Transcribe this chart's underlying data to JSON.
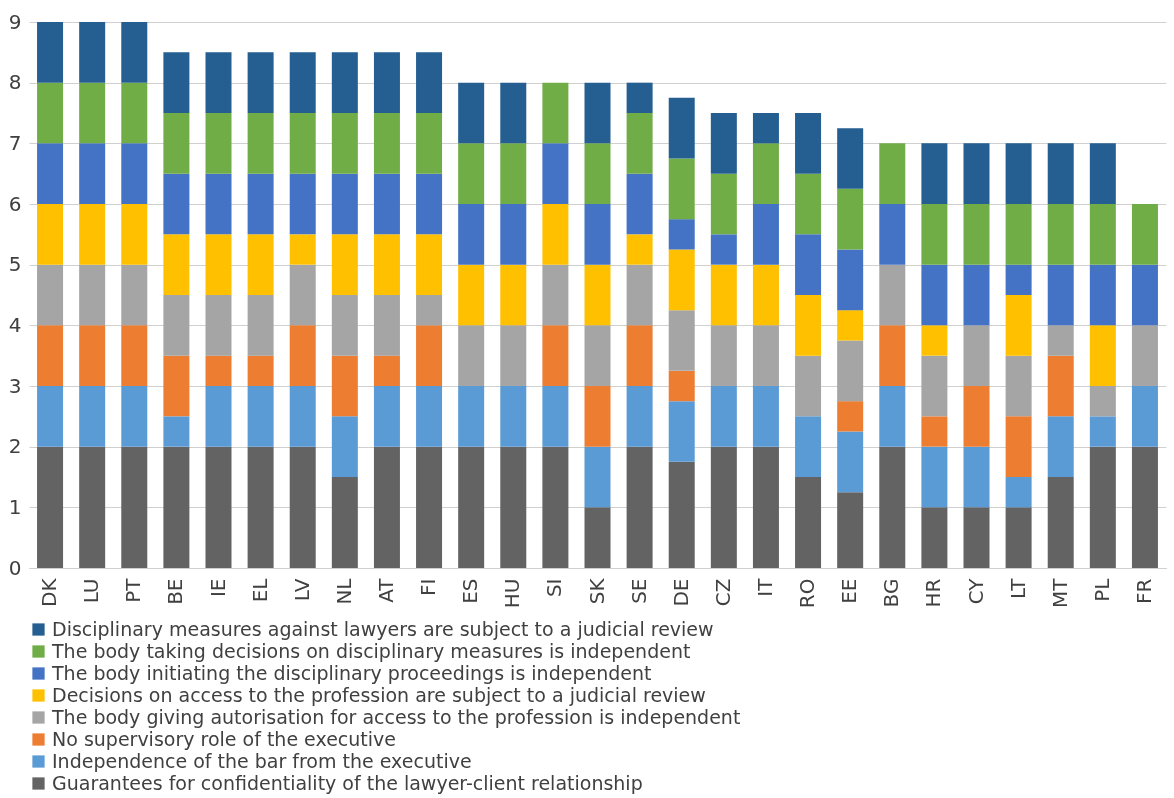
{
  "chart_data": {
    "type": "bar",
    "stacked": true,
    "categories": [
      "DK",
      "LU",
      "PT",
      "BE",
      "IE",
      "EL",
      "LV",
      "NL",
      "AT",
      "FI",
      "ES",
      "HU",
      "SI",
      "SK",
      "SE",
      "DE",
      "CZ",
      "IT",
      "RO",
      "EE",
      "BG",
      "HR",
      "CY",
      "LT",
      "MT",
      "PL",
      "FR"
    ],
    "series": [
      {
        "name": "Guarantees for confidentiality of the lawyer-client relationship",
        "color": "#636363",
        "values": [
          2,
          2,
          2,
          2,
          2,
          2,
          2,
          1.5,
          2,
          2,
          2,
          2,
          2,
          1,
          2,
          1.75,
          2,
          2,
          1.5,
          1.25,
          2,
          1,
          1,
          1,
          1.5,
          2,
          2
        ]
      },
      {
        "name": "Independence of the bar from the executive",
        "color": "#5b9bd5",
        "values": [
          1,
          1,
          1,
          0.5,
          1,
          1,
          1,
          1,
          1,
          1,
          1,
          1,
          1,
          1,
          1,
          1,
          1,
          1,
          1,
          1,
          1,
          1,
          1,
          0.5,
          1,
          0.5,
          1
        ]
      },
      {
        "name": "No supervisory role of the executive",
        "color": "#ed7d31",
        "values": [
          1,
          1,
          1,
          1,
          0.5,
          0.5,
          1,
          1,
          0.5,
          1,
          0,
          0,
          1,
          1,
          1,
          0.5,
          0,
          0,
          0,
          0.5,
          1,
          0.5,
          1,
          1,
          1,
          0,
          0
        ]
      },
      {
        "name": "The body giving autorisation for access to the profession is independent",
        "color": "#a5a5a5",
        "values": [
          1,
          1,
          1,
          1,
          1,
          1,
          1,
          1,
          1,
          0.5,
          1,
          1,
          1,
          1,
          1,
          1,
          1,
          1,
          1,
          1,
          1,
          1,
          1,
          1,
          0.5,
          0.5,
          1
        ]
      },
      {
        "name": "Decisions on access to the profession are subject to a judicial review",
        "color": "#ffc000",
        "values": [
          1,
          1,
          1,
          1,
          1,
          1,
          0.5,
          1,
          1,
          1,
          1,
          1,
          1,
          1,
          0.5,
          1,
          1,
          1,
          1,
          0.5,
          0,
          0.5,
          0,
          1,
          0,
          1,
          0
        ]
      },
      {
        "name": "The body initiating the disciplinary proceedings is independent",
        "color": "#4472c4",
        "values": [
          1,
          1,
          1,
          1,
          1,
          1,
          1,
          1,
          1,
          1,
          1,
          1,
          1,
          1,
          1,
          0.5,
          0.5,
          1,
          1,
          1,
          1,
          1,
          1,
          0.5,
          1,
          1,
          1
        ]
      },
      {
        "name": "The body taking decisions on disciplinary measures is independent",
        "color": "#70ad47",
        "values": [
          1,
          1,
          1,
          1,
          1,
          1,
          1,
          1,
          1,
          1,
          1,
          1,
          1,
          1,
          1,
          1,
          1,
          1,
          1,
          1,
          1,
          1,
          1,
          1,
          1,
          1,
          1
        ]
      },
      {
        "name": "Disciplinary measures against lawyers are subject to a judicial review",
        "color": "#255e91",
        "values": [
          1,
          1,
          1,
          1,
          1,
          1,
          1,
          1,
          1,
          1,
          1,
          1,
          0,
          1,
          0.5,
          1,
          1,
          0.5,
          1,
          1,
          0,
          1,
          1,
          1,
          1,
          1,
          0
        ]
      }
    ],
    "ylim": [
      0,
      9
    ],
    "yticks": [
      0,
      1,
      2,
      3,
      4,
      5,
      6,
      7,
      8,
      9
    ],
    "grid": "y",
    "legend": "bottom"
  }
}
